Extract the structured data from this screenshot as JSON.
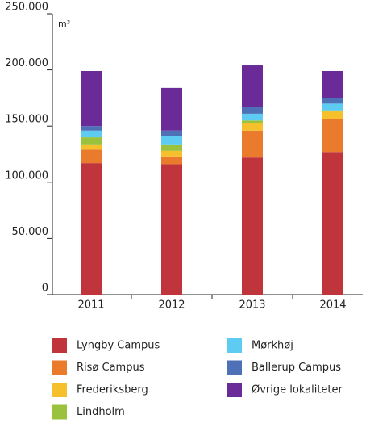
{
  "chart_data": {
    "type": "stacked_bar",
    "y_label": "m³",
    "categories": [
      "2011",
      "2012",
      "2013",
      "2014"
    ],
    "series": [
      {
        "name": "Lyngby Campus",
        "color": "#c0343c",
        "values": [
          117000,
          116000,
          122000,
          127000
        ]
      },
      {
        "name": "Risø Campus",
        "color": "#ea7a2c",
        "values": [
          12000,
          7000,
          24000,
          29000
        ]
      },
      {
        "name": "Frederiksberg",
        "color": "#f5c02c",
        "values": [
          4000,
          5000,
          7000,
          7000
        ]
      },
      {
        "name": "Lindholm",
        "color": "#9bc23c",
        "values": [
          7000,
          5000,
          2000,
          1000
        ]
      },
      {
        "name": "Mørkhøj",
        "color": "#5ecbf2",
        "values": [
          6000,
          8000,
          6000,
          6000
        ]
      },
      {
        "name": "Ballerup Campus",
        "color": "#4e70b6",
        "values": [
          4000,
          5000,
          6000,
          5000
        ]
      },
      {
        "name": "Øvrige lokaliteter",
        "color": "#6a2a98",
        "values": [
          49000,
          38000,
          37000,
          24000
        ]
      }
    ],
    "ylim": [
      0,
      250000
    ],
    "yticks": [
      0,
      {
        "value": 50000,
        "label": "50.000"
      },
      {
        "value": 100000,
        "label": "100.000"
      },
      {
        "value": 150000,
        "label": "150.000"
      },
      {
        "value": 200000,
        "label": "200.000"
      },
      {
        "value": 250000,
        "label": "250.000"
      }
    ]
  }
}
